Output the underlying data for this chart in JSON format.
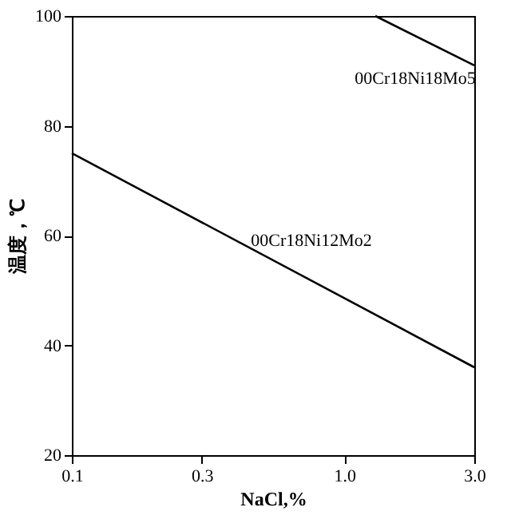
{
  "chart_data": {
    "type": "line",
    "xlabel": "NaCl,%",
    "ylabel": "温度，℃",
    "log": "x",
    "xlim": [
      0.1,
      3
    ],
    "xticks": [
      0.1,
      0.3,
      {
        "value": 1,
        "label": "1.0"
      },
      {
        "value": 3,
        "label": "3.0"
      }
    ],
    "ylim": [
      20,
      100
    ],
    "yticks": [
      20,
      40,
      60,
      80,
      100
    ],
    "grid": false,
    "legend": false,
    "marker": "none",
    "line_style": "solid",
    "series": [
      {
        "name": "00Cr18Ni12Mo2",
        "color": "#000000",
        "x": [
          0.1,
          3
        ],
        "values": [
          75,
          36
        ]
      },
      {
        "name": "00Cr18Ni18Mo5",
        "color": "#000000",
        "x": [
          1.3,
          3
        ],
        "values": [
          100,
          91
        ]
      }
    ]
  }
}
